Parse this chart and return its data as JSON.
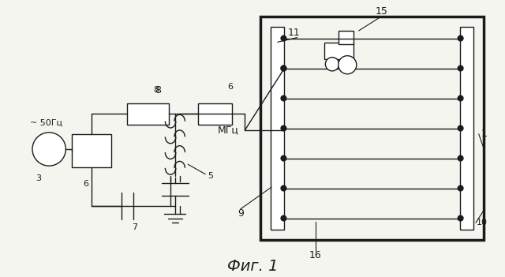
{
  "title": "Фиг. 1",
  "background_color": "#f5f5f0",
  "fig_width": 6.4,
  "fig_height": 3.51,
  "source_freq": "~ 50Гц",
  "mpc_label": "МГц",
  "black": "#1a1a1a",
  "lw": 1.0
}
